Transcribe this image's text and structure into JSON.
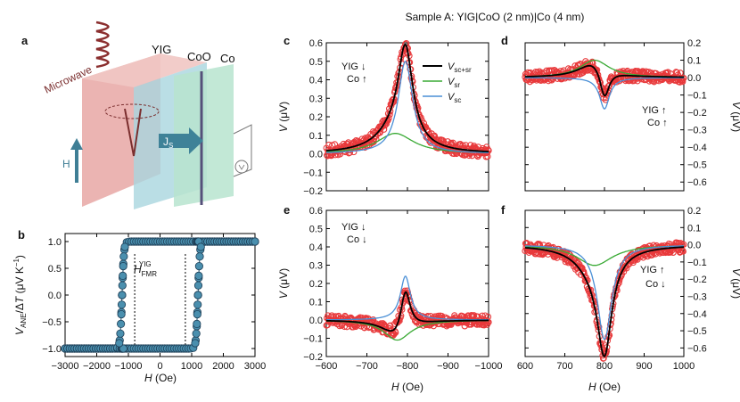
{
  "suptitle": "Sample A: YIG|CoO (2 nm)|Co (4 nm)",
  "panel_letters": {
    "a": "a",
    "b": "b",
    "c": "c",
    "d": "d",
    "e": "e",
    "f": "f"
  },
  "schematic": {
    "microwave": "Microwave",
    "yig": "YIG",
    "coo": "CoO",
    "co": "Co",
    "js": "J",
    "js_sub": "S",
    "h": "H",
    "colors": {
      "yig_face": "#e9a9a9",
      "coo_face": "#a8d3dd",
      "co_face": "#b8e3cf",
      "coil": "#8b2f2f",
      "arrow": "#3f7e95"
    }
  },
  "legend": {
    "scsr": "V",
    "scsr_sub": "sc+sr",
    "sr": "V",
    "sr_sub": "sr",
    "sc": "V",
    "sc_sub": "sc",
    "colors": {
      "scsr": "#000000",
      "sr": "#3aaa35",
      "sc": "#4a8fd6",
      "data": "#e8393b"
    }
  },
  "chart_data": [
    {
      "panel": "b",
      "type": "scatter",
      "xlabel": "H (Oe)",
      "ylabel": "V_ANE/ΔT (μV K⁻¹)",
      "ylabel_parts": {
        "v": "V",
        "sub": "ANE",
        "rest": "/Δ",
        "t": "T",
        "unit": " (μV K",
        "sup": "−1",
        "close": ")"
      },
      "xlabel_parts": {
        "h": "H",
        "unit": " (Oe)"
      },
      "xlim": [
        -3000,
        3000
      ],
      "ylim": [
        -1.15,
        1.15
      ],
      "xticks": [
        -3000,
        -2000,
        -1000,
        0,
        1000,
        2000,
        3000
      ],
      "xtick_labels": [
        "−3000",
        "−2000",
        "−1000",
        "0",
        "1000",
        "2000",
        "3000"
      ],
      "yticks": [
        -1.0,
        -0.5,
        0.0,
        0.5,
        1.0
      ],
      "ytick_labels": [
        "−1.0",
        "−0.5",
        "0.0",
        "0.5",
        "1.0"
      ],
      "coercive_field": 1200,
      "saturation": 1.0,
      "fmr_lines": [
        -800,
        800
      ],
      "annotation": {
        "h": "H",
        "sub": "FMR",
        "sup": "YIG"
      }
    },
    {
      "panel": "c",
      "type": "line",
      "label": {
        "yig": "YIG",
        "yig_dir": "↓",
        "co": "Co",
        "co_dir": "↑"
      },
      "xlim": [
        -600,
        -1000
      ],
      "ylim": [
        -0.2,
        0.6
      ],
      "xticks": [
        -600,
        -700,
        -800,
        -900,
        -1000
      ],
      "xtick_labels": [
        "−600",
        "−700",
        "−800",
        "−900",
        "−1000"
      ],
      "yticks": [
        -0.2,
        -0.1,
        0.0,
        0.1,
        0.2,
        0.3,
        0.4,
        0.5,
        0.6
      ],
      "ytick_labels": [
        "−0.2",
        "−0.1",
        "0.0",
        "0.1",
        "0.2",
        "0.3",
        "0.4",
        "0.5",
        "0.6"
      ],
      "ylabel": "V (μV)",
      "series": [
        {
          "name": "V_sc",
          "center": -795,
          "amp": 0.5,
          "width": 22,
          "kind": "sym"
        },
        {
          "name": "V_sr",
          "center": -770,
          "amp": 0.11,
          "width": 55,
          "kind": "sym"
        },
        {
          "name": "V_sc+sr",
          "components": "sum"
        }
      ]
    },
    {
      "panel": "d",
      "type": "line",
      "label": {
        "yig": "YIG",
        "yig_dir": "↑",
        "co": "Co",
        "co_dir": "↑"
      },
      "xlim": [
        600,
        1000
      ],
      "ylim": [
        -0.65,
        0.2
      ],
      "xticks": [
        600,
        700,
        800,
        900,
        1000
      ],
      "yticks": [
        0.2,
        0.1,
        0.0,
        -0.1,
        -0.2,
        -0.3,
        -0.4,
        -0.5,
        -0.6
      ],
      "ytick_labels": [
        "0.2",
        "0.1",
        "0.0",
        "−0.1",
        "−0.2",
        "−0.3",
        "−0.4",
        "−0.5",
        "−0.6"
      ],
      "ylabel": "V (μV)",
      "series": [
        {
          "name": "V_sc",
          "center": 800,
          "amp": -0.18,
          "width": 15,
          "kind": "sym"
        },
        {
          "name": "V_sr",
          "center": 775,
          "amp": 0.1,
          "width": 45,
          "kind": "sym"
        },
        {
          "name": "V_sc+sr",
          "components": "sum"
        }
      ]
    },
    {
      "panel": "e",
      "type": "line",
      "label": {
        "yig": "YIG",
        "yig_dir": "↓",
        "co": "Co",
        "co_dir": "↓"
      },
      "xlim": [
        -600,
        -1000
      ],
      "ylim": [
        -0.2,
        0.6
      ],
      "xticks": [
        -600,
        -700,
        -800,
        -900,
        -1000
      ],
      "xtick_labels": [
        "−600",
        "−700",
        "−800",
        "−900",
        "−1000"
      ],
      "xlabel": "H (Oe)",
      "yticks": [
        -0.2,
        -0.1,
        0.0,
        0.1,
        0.2,
        0.3,
        0.4,
        0.5,
        0.6
      ],
      "ytick_labels": [
        "−0.2",
        "−0.1",
        "0.0",
        "0.1",
        "0.2",
        "0.3",
        "0.4",
        "0.5",
        "0.6"
      ],
      "ylabel": "V (μV)",
      "series": [
        {
          "name": "V_sc",
          "center": -795,
          "amp": 0.24,
          "width": 15,
          "kind": "sym"
        },
        {
          "name": "V_sr",
          "center": -775,
          "amp": -0.11,
          "width": 40,
          "kind": "sym"
        },
        {
          "name": "V_sc+sr",
          "components": "sum"
        }
      ]
    },
    {
      "panel": "f",
      "type": "line",
      "label": {
        "yig": "YIG",
        "yig_dir": "↑",
        "co": "Co",
        "co_dir": "↓"
      },
      "xlim": [
        600,
        1000
      ],
      "ylim": [
        -0.65,
        0.2
      ],
      "xticks": [
        600,
        700,
        800,
        900,
        1000
      ],
      "xlabel": "H (Oe)",
      "yticks": [
        0.2,
        0.1,
        0.0,
        -0.1,
        -0.2,
        -0.3,
        -0.4,
        -0.5,
        -0.6
      ],
      "ytick_labels": [
        "0.2",
        "0.1",
        "0.0",
        "−0.1",
        "−0.2",
        "−0.3",
        "−0.4",
        "−0.5",
        "−0.6"
      ],
      "ylabel": "V (μV)",
      "series": [
        {
          "name": "V_sc",
          "center": 800,
          "amp": -0.55,
          "width": 22,
          "kind": "sym"
        },
        {
          "name": "V_sr",
          "center": 775,
          "amp": -0.12,
          "width": 55,
          "kind": "sym"
        },
        {
          "name": "V_sc+sr",
          "components": "sum"
        }
      ]
    }
  ]
}
